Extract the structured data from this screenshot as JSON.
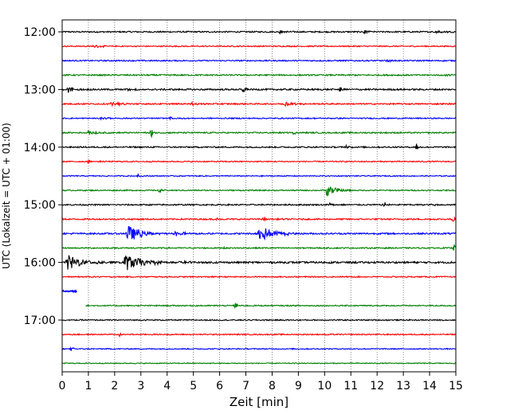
{
  "chart_data": {
    "type": "line",
    "title": "",
    "xlabel": "Zeit  [min]",
    "ylabel": "UTC (Lokalzeit = UTC + 01:00)",
    "xlim": [
      0,
      15
    ],
    "x_ticks": [
      0,
      1,
      2,
      3,
      4,
      5,
      6,
      7,
      8,
      9,
      10,
      11,
      12,
      13,
      14,
      15
    ],
    "x_tick_labels": [
      "0",
      "1",
      "2",
      "3",
      "4",
      "5",
      "6",
      "7",
      "8",
      "9",
      "10",
      "11",
      "12",
      "13",
      "14",
      "15"
    ],
    "y_tick_labels": [
      "12:00",
      "13:00",
      "14:00",
      "15:00",
      "16:00",
      "17:00"
    ],
    "y_tick_rows": [
      0,
      4,
      8,
      12,
      16,
      20
    ],
    "grid": "vertical dotted",
    "trace_colors": [
      "#000000",
      "#ff0000",
      "#0000ff",
      "#008000"
    ],
    "traces": [
      {
        "row": 0,
        "color_index": 0,
        "noise": 0.12,
        "x_start": 0,
        "x_end": 15,
        "events": [
          {
            "x": 8.3,
            "amp": 0.35,
            "dur": 0.15
          },
          {
            "x": 11.5,
            "amp": 0.5,
            "dur": 0.1
          },
          {
            "x": 14.2,
            "amp": 0.3,
            "dur": 0.3
          }
        ]
      },
      {
        "row": 1,
        "color_index": 1,
        "noise": 0.1,
        "x_start": 0,
        "x_end": 15,
        "events": [
          {
            "x": 1.2,
            "amp": 0.25,
            "dur": 0.3
          }
        ]
      },
      {
        "row": 2,
        "color_index": 2,
        "noise": 0.11,
        "x_start": 0,
        "x_end": 15,
        "events": [
          {
            "x": 12.4,
            "amp": 0.35,
            "dur": 0.08
          }
        ]
      },
      {
        "row": 3,
        "color_index": 3,
        "noise": 0.12,
        "x_start": 0,
        "x_end": 15,
        "events": [
          {
            "x": 14.6,
            "amp": 0.25,
            "dur": 0.2
          }
        ]
      },
      {
        "row": 4,
        "color_index": 0,
        "noise": 0.14,
        "x_start": 0,
        "x_end": 15,
        "events": [
          {
            "x": 0.25,
            "amp": 0.8,
            "dur": 0.15
          },
          {
            "x": 6.9,
            "amp": 0.9,
            "dur": 0.08
          },
          {
            "x": 10.6,
            "amp": 0.6,
            "dur": 0.08
          },
          {
            "x": 2.4,
            "amp": 0.3,
            "dur": 0.3
          }
        ]
      },
      {
        "row": 5,
        "color_index": 1,
        "noise": 0.12,
        "x_start": 0,
        "x_end": 15,
        "events": [
          {
            "x": 1.9,
            "amp": 0.35,
            "dur": 0.4
          },
          {
            "x": 4.9,
            "amp": 0.3,
            "dur": 0.2
          },
          {
            "x": 8.5,
            "amp": 0.35,
            "dur": 0.4
          }
        ]
      },
      {
        "row": 6,
        "color_index": 2,
        "noise": 0.1,
        "x_start": 0,
        "x_end": 15,
        "events": [
          {
            "x": 1.5,
            "amp": 0.25,
            "dur": 0.2
          },
          {
            "x": 4.1,
            "amp": 0.25,
            "dur": 0.2
          }
        ]
      },
      {
        "row": 7,
        "color_index": 3,
        "noise": 0.12,
        "x_start": 0,
        "x_end": 15,
        "events": [
          {
            "x": 1.0,
            "amp": 0.4,
            "dur": 0.25
          },
          {
            "x": 3.4,
            "amp": 0.8,
            "dur": 0.06
          },
          {
            "x": 8.8,
            "amp": 0.45,
            "dur": 0.08
          }
        ]
      },
      {
        "row": 8,
        "color_index": 0,
        "noise": 0.12,
        "x_start": 0,
        "x_end": 15,
        "events": [
          {
            "x": 13.5,
            "amp": 0.8,
            "dur": 0.06
          },
          {
            "x": 10.8,
            "amp": 0.3,
            "dur": 0.15
          }
        ]
      },
      {
        "row": 9,
        "color_index": 1,
        "noise": 0.1,
        "x_start": 0,
        "x_end": 15,
        "events": [
          {
            "x": 1.0,
            "amp": 0.3,
            "dur": 0.15
          }
        ]
      },
      {
        "row": 10,
        "color_index": 2,
        "noise": 0.09,
        "x_start": 0,
        "x_end": 15,
        "events": [
          {
            "x": 2.9,
            "amp": 0.4,
            "dur": 0.06
          }
        ]
      },
      {
        "row": 11,
        "color_index": 3,
        "noise": 0.1,
        "x_start": 0,
        "x_end": 15,
        "events": [
          {
            "x": 10.1,
            "amp": 1.3,
            "dur": 0.3
          },
          {
            "x": 3.7,
            "amp": 0.3,
            "dur": 0.1
          }
        ]
      },
      {
        "row": 12,
        "color_index": 0,
        "noise": 0.12,
        "x_start": 0,
        "x_end": 15,
        "events": [
          {
            "x": 12.3,
            "amp": 0.7,
            "dur": 0.06
          },
          {
            "x": 10.2,
            "amp": 0.35,
            "dur": 0.08
          },
          {
            "x": 14.1,
            "amp": 0.3,
            "dur": 0.1
          }
        ]
      },
      {
        "row": 13,
        "color_index": 1,
        "noise": 0.12,
        "x_start": 0,
        "x_end": 15,
        "events": [
          {
            "x": 5.9,
            "amp": 0.5,
            "dur": 0.08
          },
          {
            "x": 7.7,
            "amp": 0.4,
            "dur": 0.1
          },
          {
            "x": 14.9,
            "amp": 0.5,
            "dur": 0.08
          }
        ]
      },
      {
        "row": 14,
        "color_index": 2,
        "noise": 0.14,
        "x_start": 0,
        "x_end": 15,
        "events": [
          {
            "x": 2.5,
            "amp": 1.6,
            "dur": 0.5
          },
          {
            "x": 4.3,
            "amp": 0.4,
            "dur": 0.4
          },
          {
            "x": 7.5,
            "amp": 1.5,
            "dur": 0.5
          }
        ]
      },
      {
        "row": 15,
        "color_index": 3,
        "noise": 0.11,
        "x_start": 0,
        "x_end": 15,
        "events": [
          {
            "x": 6.2,
            "amp": 0.35,
            "dur": 0.08
          },
          {
            "x": 14.95,
            "amp": 0.8,
            "dur": 0.05
          }
        ]
      },
      {
        "row": 16,
        "color_index": 0,
        "noise": 0.16,
        "x_start": 0,
        "x_end": 15,
        "events": [
          {
            "x": 0.2,
            "amp": 1.5,
            "dur": 0.55
          },
          {
            "x": 2.4,
            "amp": 1.6,
            "dur": 0.6
          },
          {
            "x": 4.5,
            "amp": 0.3,
            "dur": 0.4
          }
        ]
      },
      {
        "row": 17,
        "color_index": 1,
        "noise": 0.1,
        "x_start": 0,
        "x_end": 15,
        "events": []
      },
      {
        "row": 18,
        "color_index": 2,
        "noise": 0.1,
        "x_start": 0,
        "x_end": 0.55,
        "events": []
      },
      {
        "row": 19,
        "color_index": 3,
        "noise": 0.1,
        "x_start": 0.9,
        "x_end": 15,
        "events": [
          {
            "x": 6.6,
            "amp": 0.6,
            "dur": 0.06
          }
        ]
      },
      {
        "row": 20,
        "color_index": 0,
        "noise": 0.1,
        "x_start": 0,
        "x_end": 15,
        "events": []
      },
      {
        "row": 21,
        "color_index": 1,
        "noise": 0.1,
        "x_start": 0,
        "x_end": 15,
        "events": [
          {
            "x": 2.2,
            "amp": 0.45,
            "dur": 0.06
          },
          {
            "x": 10.1,
            "amp": 0.3,
            "dur": 0.06
          }
        ]
      },
      {
        "row": 22,
        "color_index": 2,
        "noise": 0.09,
        "x_start": 0,
        "x_end": 15,
        "events": [
          {
            "x": 0.35,
            "amp": 0.35,
            "dur": 0.08
          }
        ]
      },
      {
        "row": 23,
        "color_index": 3,
        "noise": 0.08,
        "x_start": 0,
        "x_end": 15,
        "events": []
      }
    ]
  }
}
